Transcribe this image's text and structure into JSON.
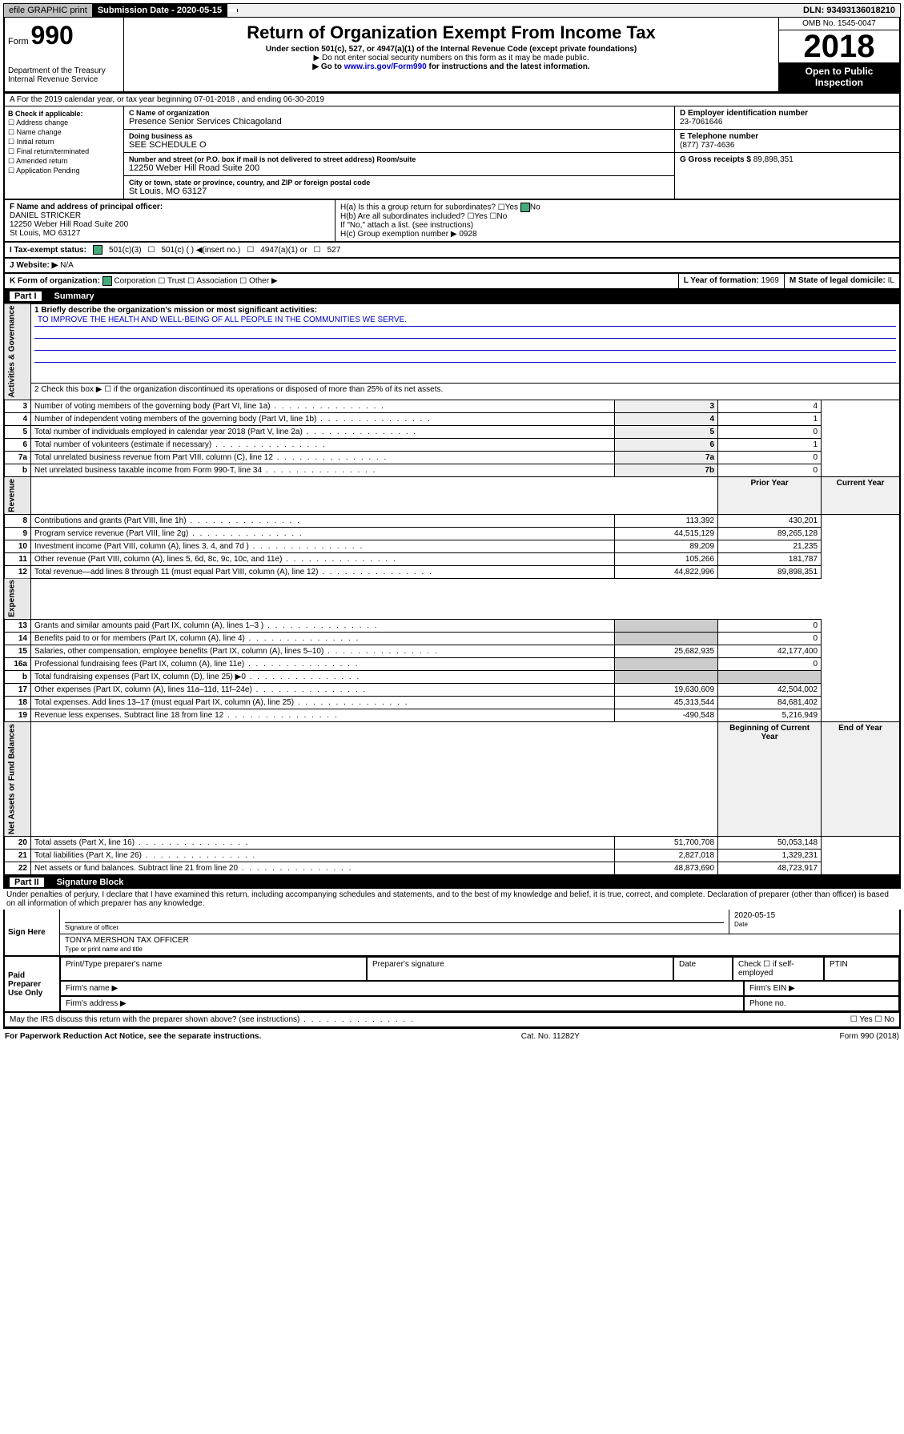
{
  "top_bar": {
    "efile": "efile GRAPHIC print",
    "submission_label": "Submission Date - 2020-05-15",
    "dln_label": "DLN: 93493136018210"
  },
  "header": {
    "form_word": "Form",
    "form_num": "990",
    "dept": "Department of the Treasury\nInternal Revenue Service",
    "title": "Return of Organization Exempt From Income Tax",
    "sub1": "Under section 501(c), 527, or 4947(a)(1) of the Internal Revenue Code (except private foundations)",
    "sub2": "▶ Do not enter social security numbers on this form as it may be made public.",
    "sub3_prefix": "▶ Go to ",
    "sub3_link": "www.irs.gov/Form990",
    "sub3_suffix": " for instructions and the latest information.",
    "omb": "OMB No. 1545-0047",
    "year": "2018",
    "open_public": "Open to Public Inspection"
  },
  "line_a": "A For the 2019 calendar year, or tax year beginning 07-01-2018    , and ending 06-30-2019",
  "col_b": {
    "label": "B Check if applicable:",
    "opts": [
      "Address change",
      "Name change",
      "Initial return",
      "Final return/terminated",
      "Amended return",
      "Application Pending"
    ]
  },
  "col_c": {
    "name_label": "C Name of organization",
    "name": "Presence Senior Services Chicagoland",
    "dba_label": "Doing business as",
    "dba": "SEE SCHEDULE O",
    "addr_label": "Number and street (or P.O. box if mail is not delivered to street address)    Room/suite",
    "addr": "12250 Weber Hill Road Suite 200",
    "city_label": "City or town, state or province, country, and ZIP or foreign postal code",
    "city": "St Louis, MO  63127"
  },
  "col_d": {
    "label": "D Employer identification number",
    "ein": "23-7061646",
    "tel_label": "E Telephone number",
    "tel": "(877) 737-4636",
    "gross_label": "G Gross receipts $",
    "gross": "89,898,351"
  },
  "row_f": {
    "f_label": "F  Name and address of principal officer:",
    "f_name": "DANIEL STRICKER",
    "f_addr1": "12250 Weber Hill Road Suite 200",
    "f_addr2": "St Louis, MO  63127",
    "ha_label": "H(a)  Is this a group return for subordinates?",
    "ha_yes": "Yes",
    "ha_no": "No",
    "hb_label": "H(b)  Are all subordinates included?",
    "hb_note": "If \"No,\" attach a list. (see instructions)",
    "hc_label": "H(c)  Group exemption number ▶",
    "hc_val": "0928"
  },
  "tax_status": {
    "i_label": "I    Tax-exempt status:",
    "opt1": "501(c)(3)",
    "opt2": "501(c) (   ) ◀(insert no.)",
    "opt3": "4947(a)(1) or",
    "opt4": "527"
  },
  "website": {
    "j_label": "J    Website: ▶",
    "j_val": "N/A"
  },
  "row_k": {
    "k_label": "K Form of organization:",
    "k_opts": [
      "Corporation",
      "Trust",
      "Association",
      "Other ▶"
    ],
    "l_label": "L Year of formation:",
    "l_val": "1969",
    "m_label": "M State of legal domicile:",
    "m_val": "IL"
  },
  "part1": {
    "num": "Part I",
    "title": "Summary",
    "l1_label": "1  Briefly describe the organization's mission or most significant activities:",
    "l1_val": "TO IMPROVE THE HEALTH AND WELL-BEING OF ALL PEOPLE IN THE COMMUNITIES WE SERVE.",
    "l2": "2   Check this box ▶ ☐  if the organization discontinued its operations or disposed of more than 25% of its net assets.",
    "rows_ag": [
      {
        "n": "3",
        "t": "Number of voting members of the governing body (Part VI, line 1a)",
        "b": "3",
        "v": "4"
      },
      {
        "n": "4",
        "t": "Number of independent voting members of the governing body (Part VI, line 1b)",
        "b": "4",
        "v": "1"
      },
      {
        "n": "5",
        "t": "Total number of individuals employed in calendar year 2018 (Part V, line 2a)",
        "b": "5",
        "v": "0"
      },
      {
        "n": "6",
        "t": "Total number of volunteers (estimate if necessary)",
        "b": "6",
        "v": "1"
      },
      {
        "n": "7a",
        "t": "Total unrelated business revenue from Part VIII, column (C), line 12",
        "b": "7a",
        "v": "0"
      },
      {
        "n": "b",
        "t": "Net unrelated business taxable income from Form 990-T, line 34",
        "b": "7b",
        "v": "0"
      }
    ],
    "vert_ag": "Activities & Governance",
    "vert_rev": "Revenue",
    "vert_exp": "Expenses",
    "vert_net": "Net Assets or Fund Balances",
    "prior_header": "Prior Year",
    "curr_header": "Current Year",
    "rows_rev": [
      {
        "n": "8",
        "t": "Contributions and grants (Part VIII, line 1h)",
        "p": "113,392",
        "c": "430,201"
      },
      {
        "n": "9",
        "t": "Program service revenue (Part VIII, line 2g)",
        "p": "44,515,129",
        "c": "89,265,128"
      },
      {
        "n": "10",
        "t": "Investment income (Part VIII, column (A), lines 3, 4, and 7d )",
        "p": "89,209",
        "c": "21,235"
      },
      {
        "n": "11",
        "t": "Other revenue (Part VIII, column (A), lines 5, 6d, 8c, 9c, 10c, and 11e)",
        "p": "105,266",
        "c": "181,787"
      },
      {
        "n": "12",
        "t": "Total revenue—add lines 8 through 11 (must equal Part VIII, column (A), line 12)",
        "p": "44,822,996",
        "c": "89,898,351"
      }
    ],
    "rows_exp": [
      {
        "n": "13",
        "t": "Grants and similar amounts paid (Part IX, column (A), lines 1–3 )",
        "p": "",
        "c": "0"
      },
      {
        "n": "14",
        "t": "Benefits paid to or for members (Part IX, column (A), line 4)",
        "p": "",
        "c": "0"
      },
      {
        "n": "15",
        "t": "Salaries, other compensation, employee benefits (Part IX, column (A), lines 5–10)",
        "p": "25,682,935",
        "c": "42,177,400"
      },
      {
        "n": "16a",
        "t": "Professional fundraising fees (Part IX, column (A), line 11e)",
        "p": "",
        "c": "0"
      },
      {
        "n": "b",
        "t": "Total fundraising expenses (Part IX, column (D), line 25) ▶0",
        "p": "",
        "c": ""
      },
      {
        "n": "17",
        "t": "Other expenses (Part IX, column (A), lines 11a–11d, 11f–24e)",
        "p": "19,630,609",
        "c": "42,504,002"
      },
      {
        "n": "18",
        "t": "Total expenses. Add lines 13–17 (must equal Part IX, column (A), line 25)",
        "p": "45,313,544",
        "c": "84,681,402"
      },
      {
        "n": "19",
        "t": "Revenue less expenses. Subtract line 18 from line 12",
        "p": "-490,548",
        "c": "5,216,949"
      }
    ],
    "begin_header": "Beginning of Current Year",
    "end_header": "End of Year",
    "rows_net": [
      {
        "n": "20",
        "t": "Total assets (Part X, line 16)",
        "p": "51,700,708",
        "c": "50,053,148"
      },
      {
        "n": "21",
        "t": "Total liabilities (Part X, line 26)",
        "p": "2,827,018",
        "c": "1,329,231"
      },
      {
        "n": "22",
        "t": "Net assets or fund balances. Subtract line 21 from line 20",
        "p": "48,873,690",
        "c": "48,723,917"
      }
    ]
  },
  "part2": {
    "num": "Part II",
    "title": "Signature Block",
    "perjury": "Under penalties of perjury, I declare that I have examined this return, including accompanying schedules and statements, and to the best of my knowledge and belief, it is true, correct, and complete. Declaration of preparer (other than officer) is based on all information of which preparer has any knowledge."
  },
  "sign": {
    "left": "Sign Here",
    "sig_label": "Signature of officer",
    "date_label": "Date",
    "date_val": "2020-05-15",
    "name_label": "Type or print name and title",
    "name_val": "TONYA MERSHON  TAX OFFICER"
  },
  "preparer": {
    "left": "Paid Preparer Use Only",
    "h1": "Print/Type preparer's name",
    "h2": "Preparer's signature",
    "h3": "Date",
    "h4_a": "Check ☐ if self-employed",
    "h4_b": "PTIN",
    "firm_name": "Firm's name    ▶",
    "firm_ein": "Firm's EIN ▶",
    "firm_addr": "Firm's address ▶",
    "phone": "Phone no."
  },
  "discuss": {
    "text": "May the IRS discuss this return with the preparer shown above? (see instructions)",
    "yes": "Yes",
    "no": "No"
  },
  "footer": {
    "left": "For Paperwork Reduction Act Notice, see the separate instructions.",
    "center": "Cat. No. 11282Y",
    "right": "Form 990 (2018)"
  }
}
